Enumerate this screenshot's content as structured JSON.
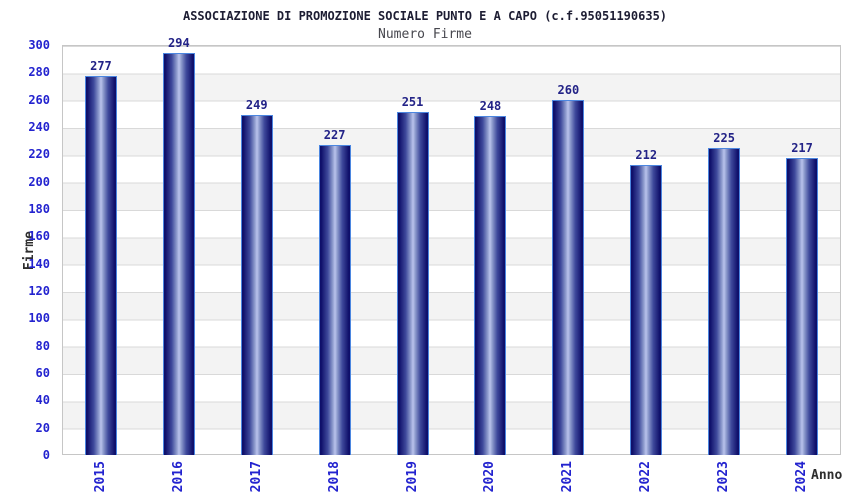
{
  "colors": {
    "title": "#1d1d33",
    "subtitle": "#47474e",
    "axisTitle": "#2e2e2e",
    "tick": "#2323cf",
    "value": "#232387",
    "plotBorder": "#c6c6c6",
    "grid": "#d9d9d9",
    "band": "#f3f3f3",
    "barDark": "#0f0f6a",
    "barMid": "#3f4a9c",
    "barSoft": "#8c99cc",
    "barLight": "#b9c3ec",
    "barBorder": "#4b86e0"
  },
  "chart_data": {
    "type": "bar",
    "title": "ASSOCIAZIONE DI PROMOZIONE SOCIALE PUNTO E A CAPO (c.f.95051190635)",
    "subtitle": "Numero Firme",
    "xlabel": "Anno",
    "ylabel": "Firme",
    "categories": [
      "2015",
      "2016",
      "2017",
      "2018",
      "2019",
      "2020",
      "2021",
      "2022",
      "2023",
      "2024"
    ],
    "values": [
      277,
      294,
      249,
      227,
      251,
      248,
      260,
      212,
      225,
      217
    ],
    "ylim": [
      0,
      300
    ],
    "yticks": [
      0,
      20,
      40,
      60,
      80,
      100,
      120,
      140,
      160,
      180,
      200,
      220,
      240,
      260,
      280,
      300
    ],
    "grid": true,
    "background_bands": "alternating white / light gray every 20 units",
    "legend": "none",
    "bar_style": "cylinder gradient, dark navy edges, light periwinkle center, light blue outline",
    "x_tick_rotation": "90deg bottom-to-top",
    "value_labels": "above bars, bold navy"
  }
}
